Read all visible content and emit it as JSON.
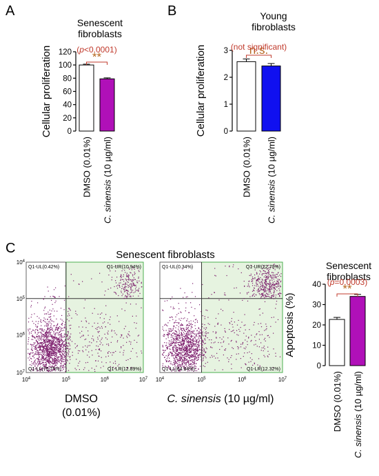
{
  "panels": {
    "A": {
      "letter": "A"
    },
    "B": {
      "letter": "B"
    },
    "C": {
      "letter": "C"
    }
  },
  "colors": {
    "dmso": "#ffffff",
    "sinensis_a": "#b010b8",
    "sinensis_b": "#1010f0",
    "sinensis_c": "#b010b8",
    "sig_text": "#c0392b",
    "star": "#b5651d",
    "flow_gate_fill": "#e6f3e0",
    "dot": "#7a1a6a"
  },
  "chart_data": [
    {
      "id": "A",
      "type": "bar",
      "title_lines": [
        "Senescent",
        "fibroblasts"
      ],
      "ylabel": "Cellular proliferation",
      "ylim": [
        0,
        120
      ],
      "yticks": [
        0,
        20,
        40,
        60,
        80,
        100,
        120
      ],
      "categories": [
        {
          "pre": "DMSO (0.01%)",
          "ital": "",
          "post": ""
        },
        {
          "pre": "",
          "ital": "C. sinensis",
          "post": " (10 µg/ml)"
        }
      ],
      "values": [
        100,
        79
      ],
      "errors": [
        1.2,
        1.5
      ],
      "significance": {
        "stars": "**",
        "label_pre": "(",
        "label_ital": "p",
        "label_post": "<0.0001)"
      }
    },
    {
      "id": "B",
      "type": "bar",
      "title_lines": [
        "Young",
        "fibroblasts"
      ],
      "ylabel": "Cellular proliferation",
      "ylim": [
        0,
        3
      ],
      "yticks": [
        0,
        1,
        2,
        3
      ],
      "categories": [
        {
          "pre": "DMSO (0.01%)",
          "ital": "",
          "post": ""
        },
        {
          "pre": "",
          "ital": "C. sinensis",
          "post": " (10 µg/ml)"
        }
      ],
      "values": [
        2.58,
        2.42
      ],
      "errors": [
        0.1,
        0.09
      ],
      "significance": {
        "stars": "n.s.",
        "label_pre": "(not significant)",
        "label_ital": "",
        "label_post": ""
      }
    },
    {
      "id": "C",
      "type": "bar",
      "title_lines": [
        "Senescent",
        "fibroblasts"
      ],
      "ylabel": "Apoptosis (%)",
      "ylim": [
        0,
        40
      ],
      "yticks": [
        0,
        10,
        20,
        30,
        40
      ],
      "categories": [
        {
          "pre": "DMSO (0.01%)",
          "ital": "",
          "post": ""
        },
        {
          "pre": "",
          "ital": "C. sinensis",
          "post": " (10 µg/ml)"
        }
      ],
      "values": [
        22.7,
        34
      ],
      "errors": [
        1.0,
        1.0
      ],
      "significance": {
        "stars": "**",
        "label_pre": "(",
        "label_ital": "p",
        "label_post": "=0.0003)"
      }
    }
  ],
  "flow": {
    "title": "Senescent fibroblasts",
    "xticks": [
      "10",
      "10",
      "10",
      "10"
    ],
    "xexps": [
      "4",
      "5",
      "6",
      "7"
    ],
    "yticks": [
      "10",
      "10",
      "10",
      "10"
    ],
    "yexps": [
      "4",
      "5",
      "6",
      "7"
    ],
    "plots": [
      {
        "id": "dmso",
        "quadrants": {
          "UL": "Q1-UL(0.42%)",
          "UR": "Q1-UR(10.94%)",
          "LL": "Q1-LL(75.75%)",
          "LR": "Q1-LR(12.89%)"
        },
        "percent": {
          "UL": 0.42,
          "UR": 10.94,
          "LL": 75.75,
          "LR": 12.89
        },
        "caption_lines": [
          "DMSO",
          "(0.01%)"
        ]
      },
      {
        "id": "sinensis",
        "quadrants": {
          "UL": "Q1-UL(0.34%)",
          "UR": "Q1-UR(22.70%)",
          "LL": "Q1-LL(64.64%)",
          "LR": "Q1-LR(12.32%)"
        },
        "percent": {
          "UL": 0.34,
          "UR": 22.7,
          "LL": 64.64,
          "LR": 12.32
        },
        "caption": {
          "ital": "C. sinensis",
          "post": " (10 µg/ml)"
        }
      }
    ]
  }
}
